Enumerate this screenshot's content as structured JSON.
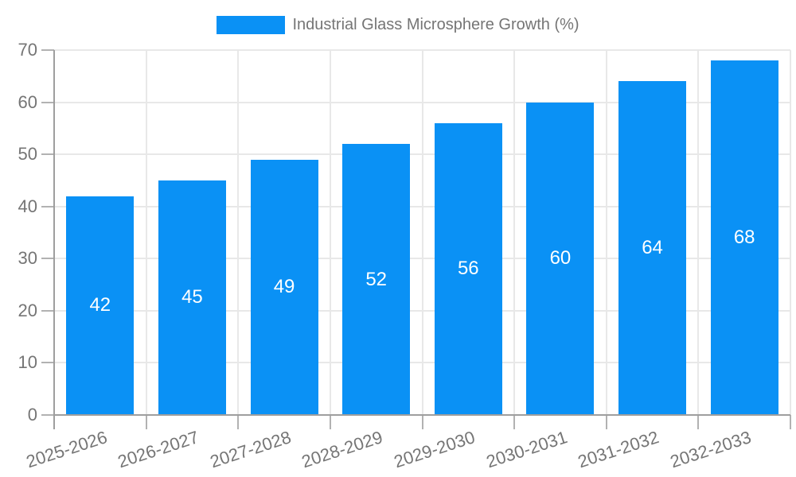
{
  "chart_data": {
    "type": "bar",
    "title": "",
    "xlabel": "",
    "ylabel": "",
    "legend": {
      "position": "top",
      "label": "Industrial Glass Microsphere Growth (%)"
    },
    "categories": [
      "2025-2026",
      "2026-2027",
      "2027-2028",
      "2028-2029",
      "2029-2030",
      "2030-2031",
      "2031-2032",
      "2032-2033"
    ],
    "values": [
      42,
      45,
      49,
      52,
      56,
      60,
      64,
      68
    ],
    "ylim": [
      0,
      70
    ],
    "yticks": [
      0,
      10,
      20,
      30,
      40,
      50,
      60,
      70
    ],
    "grid": true,
    "bar_labels_inside": true,
    "colors": {
      "bar": "#0a91f5",
      "bar_label": "#ffffff",
      "axis_text": "#757575",
      "gridline": "#e8e8e8",
      "axis_line": "#9e9e9e",
      "tick": "#b2b2b2",
      "background": "#ffffff"
    }
  }
}
